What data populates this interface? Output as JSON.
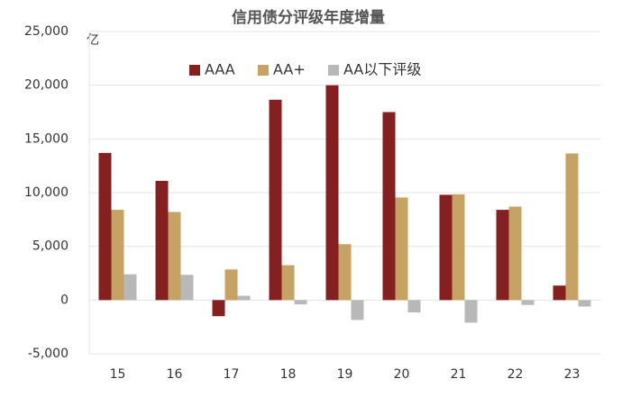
{
  "chart_data": {
    "type": "bar",
    "title": "信用债分评级年度增量",
    "y_label": "亿",
    "categories": [
      "15",
      "16",
      "17",
      "18",
      "19",
      "20",
      "21",
      "22",
      "23"
    ],
    "series": [
      {
        "name": "AAA",
        "color": "#84201f",
        "values": [
          13700,
          11100,
          -1500,
          18650,
          20000,
          17500,
          9800,
          8400,
          1350
        ]
      },
      {
        "name": "AA+",
        "color": "#c6a265",
        "values": [
          8400,
          8200,
          2850,
          3250,
          5200,
          9550,
          9850,
          8700,
          13650
        ]
      },
      {
        "name": "AA以下评级",
        "color": "#b8b8b8",
        "values": [
          2400,
          2350,
          400,
          -400,
          -1850,
          -1150,
          -2100,
          -450,
          -600
        ]
      }
    ],
    "ylim": [
      -5000,
      25000
    ],
    "yticks": [
      {
        "value": -5000,
        "label": "-5,000"
      },
      0,
      {
        "value": 5000,
        "label": "5,000"
      },
      {
        "value": 10000,
        "label": "10,000"
      },
      {
        "value": 15000,
        "label": "15,000"
      },
      {
        "value": 20000,
        "label": "20,000"
      },
      {
        "value": 25000,
        "label": "25,000"
      }
    ],
    "grid": true,
    "legend": "top"
  }
}
